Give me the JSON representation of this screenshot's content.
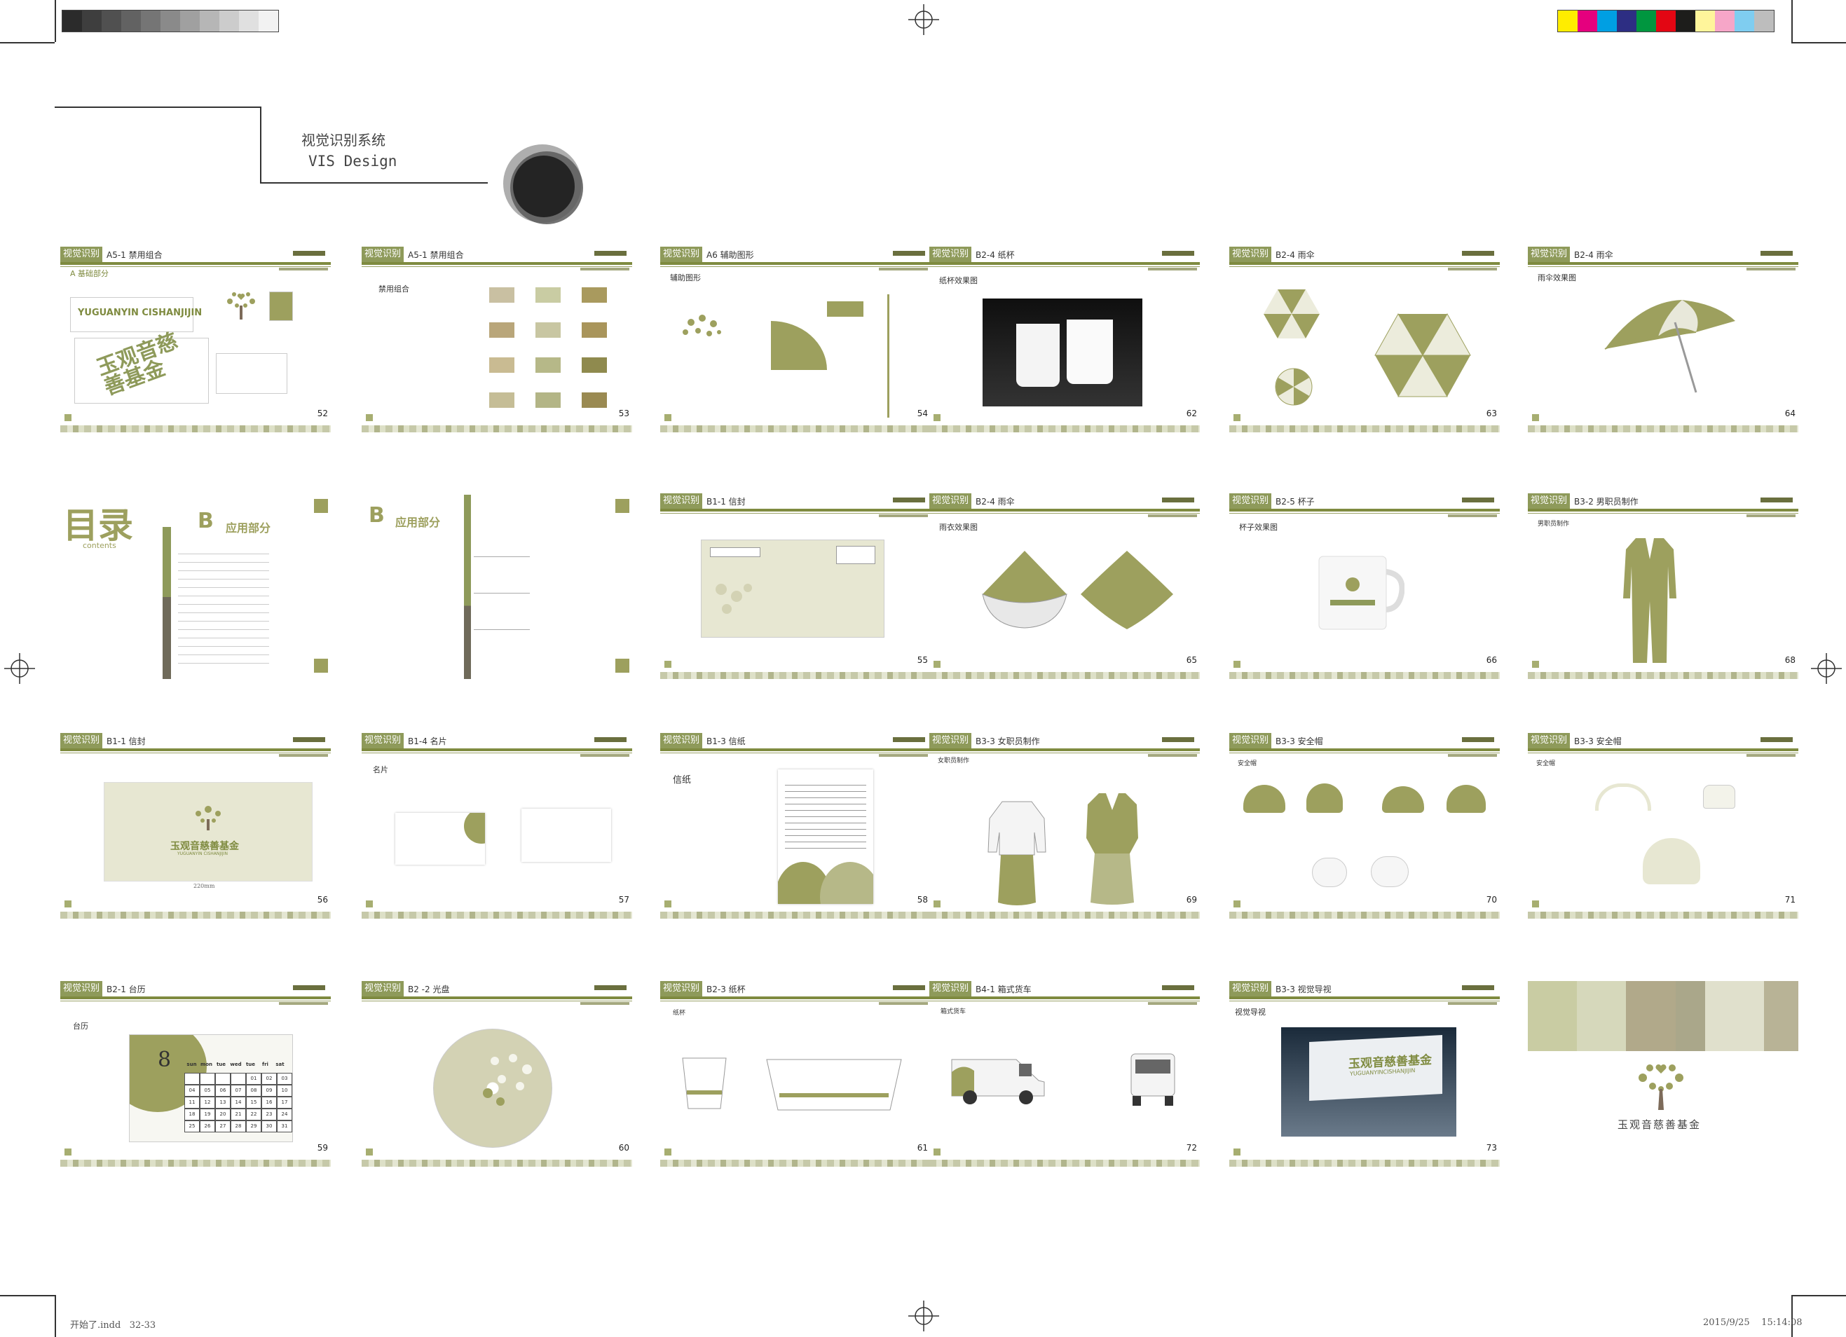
{
  "header": {
    "title_cn": "视觉识别系统",
    "title_en": "VIS Design"
  },
  "footer": {
    "file": "开始了.indd   32-33",
    "timestamp": "2015/9/25    15:14:08"
  },
  "colors": {
    "olive": "#8e9a5a",
    "olive_dark": "#6f7a34",
    "olive_light": "#c9cca3",
    "cream": "#e7e7d2"
  },
  "gray_swatches": [
    "#2b2b2b",
    "#3e3e3e",
    "#505050",
    "#626262",
    "#757575",
    "#8a8a8a",
    "#a0a0a0",
    "#b6b6b6",
    "#cccccc",
    "#e0e0e0",
    "#f2f2f2"
  ],
  "color_swatches": [
    "#ffed00",
    "#e5007e",
    "#009fe3",
    "#2d2e83",
    "#00963f",
    "#e30613",
    "#1d1d1b",
    "#fff59b",
    "#f6a6c8",
    "#7fcdf0",
    "#bdbdbd"
  ],
  "pages": [
    {
      "sect": "视觉识别",
      "title": "A5-1  禁用组合",
      "num": "52",
      "sub": "A  基础部分",
      "logo_en": "YUGUANYIN  CISHANJIJIN",
      "logo_cn": "玉观音慈善基金"
    },
    {
      "sect": "视觉识别",
      "title": "A5-1  禁用组合",
      "num": "53",
      "sub": "禁用组合"
    },
    {
      "sect": "视觉识别",
      "title": "A6  辅助图形",
      "num": "54",
      "sub": "辅助图形"
    },
    {
      "sect": "视觉识别",
      "title": "B2-4  纸杯",
      "num": "62",
      "sub": "纸杯效果图"
    },
    {
      "sect": "视觉识别",
      "title": "B2-4  雨伞",
      "num": "63"
    },
    {
      "sect": "视觉识别",
      "title": "B2-4  雨伞",
      "num": "64",
      "sub": "雨伞效果图"
    },
    {
      "toc_title": "目录",
      "toc_sub": "contents",
      "toc_b": "B",
      "toc_b_label": "应用部分"
    },
    {
      "toc_b": "B",
      "toc_b_label": "应用部分"
    },
    {
      "sect": "视觉识别",
      "title": "B1-1  信封",
      "num": "55"
    },
    {
      "sect": "视觉识别",
      "title": "B2-4  雨伞",
      "num": "65",
      "sub": "雨衣效果图"
    },
    {
      "sect": "视觉识别",
      "title": "B2-5  杯子",
      "num": "66",
      "sub": "杯子效果图"
    },
    {
      "sect": "视觉识别",
      "title": "B3-2  男职员制作",
      "num": "68",
      "sub": "男职员制作"
    },
    {
      "sect": "视觉识别",
      "title": "B1-1  信封",
      "num": "56",
      "size": "220mm",
      "logo_en": "YUGUANYIN CISHANJIJIN",
      "logo_cn": "玉观音慈善基金"
    },
    {
      "sect": "视觉识别",
      "title": "B1-4  名片",
      "num": "57",
      "sub": "名片"
    },
    {
      "sect": "视觉识别",
      "title": "B1-3  信纸",
      "num": "58",
      "sub": "信纸"
    },
    {
      "sect": "视觉识别",
      "title": "B3-3  女职员制作",
      "num": "69",
      "sub": "女职员制作"
    },
    {
      "sect": "视觉识别",
      "title": "B3-3  安全帽",
      "num": "70",
      "sub": "安全帽"
    },
    {
      "sect": "视觉识别",
      "title": "B3-3  安全帽",
      "num": "71",
      "sub": "安全帽"
    },
    {
      "sect": "视觉识别",
      "title": "B2-1  台历",
      "num": "59",
      "sub": "台历",
      "month": "8",
      "days": [
        "sun",
        "mon",
        "tue",
        "wed",
        "tue",
        "fri",
        "sat"
      ]
    },
    {
      "sect": "视觉识别",
      "title": "B2 -2 光盘",
      "num": "60"
    },
    {
      "sect": "视觉识别",
      "title": "B2-3  纸杯",
      "num": "61",
      "sub": "纸杯"
    },
    {
      "sect": "视觉识别",
      "title": "B4-1  箱式货车",
      "num": "72",
      "sub": "箱式货车"
    },
    {
      "sect": "视觉识别",
      "title": "B3-3  视觉导视",
      "num": "73",
      "sub": "视觉导视",
      "logo_cn": "玉观音慈善基金",
      "logo_en": "YUGUANYINCISHANJIJIN"
    },
    {
      "cover_caption": "玉观音慈善基金"
    }
  ],
  "calendar": {
    "rows": [
      [
        "",
        "",
        "",
        "",
        "01",
        "02",
        "03"
      ],
      [
        "04",
        "05",
        "06",
        "07",
        "08",
        "09",
        "10"
      ],
      [
        "11",
        "12",
        "13",
        "14",
        "15",
        "16",
        "17"
      ],
      [
        "18",
        "19",
        "20",
        "21",
        "22",
        "23",
        "24"
      ],
      [
        "25",
        "26",
        "27",
        "28",
        "29",
        "30",
        "31"
      ]
    ]
  }
}
